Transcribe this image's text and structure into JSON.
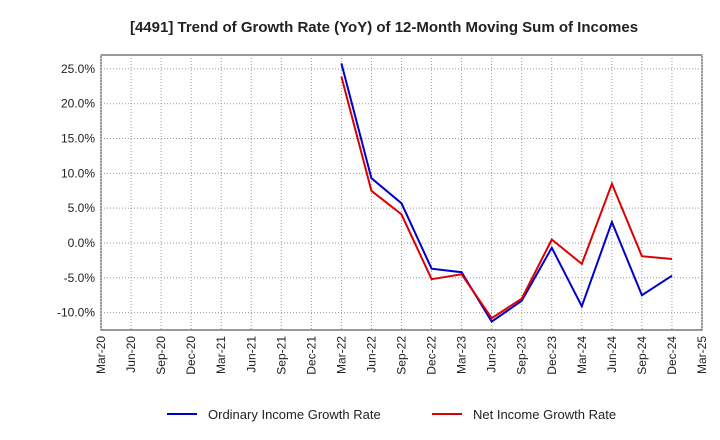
{
  "chart_data": {
    "type": "line",
    "title": "[4491]  Trend of Growth Rate (YoY) of 12-Month Moving Sum of Incomes",
    "xlabel": "",
    "ylabel": "",
    "x_ticks": [
      "Mar-20",
      "Jun-20",
      "Sep-20",
      "Dec-20",
      "Mar-21",
      "Jun-21",
      "Sep-21",
      "Dec-21",
      "Mar-22",
      "Jun-22",
      "Sep-22",
      "Dec-22",
      "Mar-23",
      "Jun-23",
      "Sep-23",
      "Dec-23",
      "Mar-24",
      "Jun-24",
      "Sep-24",
      "Dec-24",
      "Mar-25"
    ],
    "y_ticks": [
      "25.0%",
      "20.0%",
      "15.0%",
      "10.0%",
      "5.0%",
      "0.0%",
      "-5.0%",
      "-10.0%"
    ],
    "y_tick_values": [
      25,
      20,
      15,
      10,
      5,
      0,
      -5,
      -10
    ],
    "ylim": [
      -12.5,
      27
    ],
    "grid": true,
    "legend_position": "bottom",
    "x": [
      "Mar-22",
      "Jun-22",
      "Sep-22",
      "Dec-22",
      "Mar-23",
      "Jun-23",
      "Sep-23",
      "Dec-23",
      "Mar-24",
      "Jun-24",
      "Sep-24",
      "Dec-24"
    ],
    "series": [
      {
        "name": "Ordinary Income Growth Rate",
        "color": "#0000cc",
        "values": [
          25.8,
          9.3,
          5.7,
          -3.7,
          -4.2,
          -11.3,
          -8.3,
          -0.7,
          -9.1,
          3.0,
          -7.5,
          -4.7
        ]
      },
      {
        "name": "Net Income Growth Rate",
        "color": "#dd0000",
        "values": [
          23.9,
          7.5,
          4.1,
          -5.2,
          -4.5,
          -10.8,
          -8.0,
          0.5,
          -3.0,
          8.5,
          -1.9,
          -2.3
        ]
      }
    ]
  }
}
